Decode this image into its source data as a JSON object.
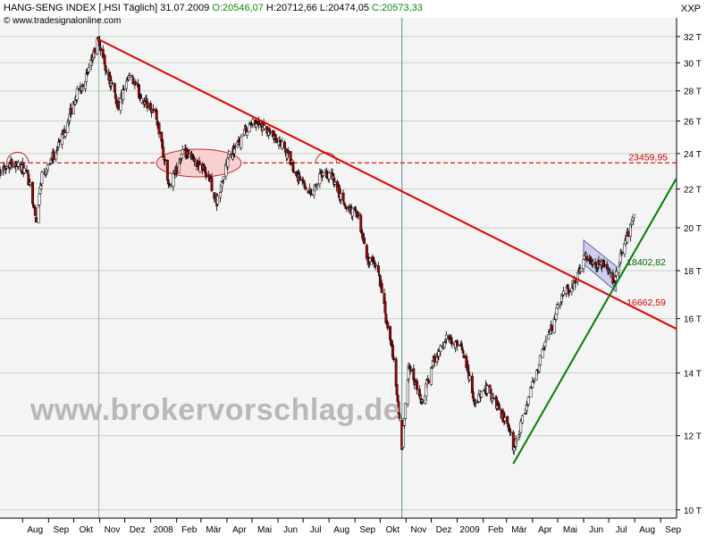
{
  "header": {
    "title": "HANG-SENG INDEX [.HSI  Täglich] 31.07.2009",
    "open_label": "O:",
    "open": "20546,07",
    "high_label": "H:",
    "high": "20712,66",
    "low_label": "L:",
    "low": "20474,05",
    "close_label": "C:",
    "close": "20573,33",
    "source": "© www.tradesignalonline.com",
    "symbol": "XXP"
  },
  "watermark": "www.brokervorschlag.de",
  "colors": {
    "background": "#f4f4f4",
    "grid": "#c6d3c6",
    "up_candle": "#ffffff",
    "down_candle": "#a80000",
    "trendline_down": "#e00000",
    "trendline_up": "#008000",
    "support_dashed": "#e00000",
    "highlight_ellipse": "#f8d0d0",
    "flag_box": "#b0b0e8",
    "label_green": "#006400",
    "label_red": "#d00000"
  },
  "chart_data": {
    "type": "candlestick",
    "title": "HANG-SENG INDEX",
    "y_scale": "log",
    "ylim": [
      9800,
      33500
    ],
    "y_ticks": [
      {
        "v": 32000,
        "label": "32 T"
      },
      {
        "v": 30000,
        "label": "30 T"
      },
      {
        "v": 28000,
        "label": "28 T"
      },
      {
        "v": 26000,
        "label": "26 T"
      },
      {
        "v": 24000,
        "label": "24 T"
      },
      {
        "v": 22000,
        "label": "22 T"
      },
      {
        "v": 20000,
        "label": "20 T"
      },
      {
        "v": 18000,
        "label": "18 T"
      },
      {
        "v": 16000,
        "label": "16 T"
      },
      {
        "v": 14000,
        "label": "14 T"
      },
      {
        "v": 12000,
        "label": "12 T"
      },
      {
        "v": 10000,
        "label": "10 T"
      }
    ],
    "xlim": [
      "2007-07-05",
      "2009-09-20"
    ],
    "x_ticks": [
      {
        "d": "2007-08-01",
        "label": "Aug"
      },
      {
        "d": "2007-09-01",
        "label": "Sep"
      },
      {
        "d": "2007-10-01",
        "label": "Okt"
      },
      {
        "d": "2007-11-01",
        "label": "Nov"
      },
      {
        "d": "2007-12-01",
        "label": "Dez"
      },
      {
        "d": "2008-01-01",
        "label": "2008"
      },
      {
        "d": "2008-02-01",
        "label": "Feb"
      },
      {
        "d": "2008-03-01",
        "label": "Mär"
      },
      {
        "d": "2008-04-01",
        "label": "Apr"
      },
      {
        "d": "2008-05-01",
        "label": "Mai"
      },
      {
        "d": "2008-06-01",
        "label": "Jun"
      },
      {
        "d": "2008-07-01",
        "label": "Jul"
      },
      {
        "d": "2008-08-01",
        "label": "Aug"
      },
      {
        "d": "2008-09-01",
        "label": "Sep"
      },
      {
        "d": "2008-10-01",
        "label": "Okt"
      },
      {
        "d": "2008-11-01",
        "label": "Nov"
      },
      {
        "d": "2008-12-01",
        "label": "Dez"
      },
      {
        "d": "2009-01-01",
        "label": "2009"
      },
      {
        "d": "2009-02-01",
        "label": "Feb"
      },
      {
        "d": "2009-03-01",
        "label": "Mär"
      },
      {
        "d": "2009-04-01",
        "label": "Apr"
      },
      {
        "d": "2009-05-01",
        "label": "Mai"
      },
      {
        "d": "2009-06-01",
        "label": "Jun"
      },
      {
        "d": "2009-07-01",
        "label": "Jul"
      },
      {
        "d": "2009-08-01",
        "label": "Aug"
      },
      {
        "d": "2009-09-01",
        "label": "Sep"
      }
    ],
    "vertical_markers": [
      {
        "d": "2007-10-31",
        "color": "#9ab59a"
      },
      {
        "d": "2008-10-27",
        "color": "#5f8f8f"
      }
    ],
    "price_path": [
      [
        "2007-07-05",
        23100
      ],
      [
        "2007-07-20",
        23500
      ],
      [
        "2007-08-01",
        23200
      ],
      [
        "2007-08-10",
        22300
      ],
      [
        "2007-08-17",
        20300
      ],
      [
        "2007-08-24",
        22800
      ],
      [
        "2007-09-07",
        23900
      ],
      [
        "2007-09-21",
        25500
      ],
      [
        "2007-10-05",
        27800
      ],
      [
        "2007-10-19",
        29300
      ],
      [
        "2007-10-30",
        31800
      ],
      [
        "2007-11-09",
        29500
      ],
      [
        "2007-11-23",
        27000
      ],
      [
        "2007-12-07",
        29000
      ],
      [
        "2007-12-20",
        27600
      ],
      [
        "2008-01-07",
        26500
      ],
      [
        "2008-01-23",
        22000
      ],
      [
        "2008-02-08",
        24000
      ],
      [
        "2008-02-22",
        23600
      ],
      [
        "2008-03-10",
        22800
      ],
      [
        "2008-03-20",
        21200
      ],
      [
        "2008-04-03",
        23800
      ],
      [
        "2008-04-15",
        24500
      ],
      [
        "2008-04-25",
        25600
      ],
      [
        "2008-05-06",
        26000
      ],
      [
        "2008-05-20",
        25200
      ],
      [
        "2008-06-06",
        24500
      ],
      [
        "2008-06-25",
        22700
      ],
      [
        "2008-07-10",
        21800
      ],
      [
        "2008-07-25",
        22900
      ],
      [
        "2008-08-05",
        22600
      ],
      [
        "2008-08-19",
        21100
      ],
      [
        "2008-09-03",
        20700
      ],
      [
        "2008-09-16",
        18500
      ],
      [
        "2008-09-29",
        18000
      ],
      [
        "2008-10-10",
        15500
      ],
      [
        "2008-10-17",
        14500
      ],
      [
        "2008-10-27",
        11500
      ],
      [
        "2008-11-04",
        14200
      ],
      [
        "2008-11-20",
        13000
      ],
      [
        "2008-12-05",
        14500
      ],
      [
        "2008-12-19",
        15200
      ],
      [
        "2009-01-08",
        14800
      ],
      [
        "2009-01-22",
        13000
      ],
      [
        "2009-02-06",
        13500
      ],
      [
        "2009-02-20",
        12800
      ],
      [
        "2009-03-06",
        12000
      ],
      [
        "2009-03-10",
        11600
      ],
      [
        "2009-03-24",
        12800
      ],
      [
        "2009-04-08",
        14300
      ],
      [
        "2009-04-24",
        15700
      ],
      [
        "2009-05-08",
        17000
      ],
      [
        "2009-05-22",
        17500
      ],
      [
        "2009-06-03",
        18600
      ],
      [
        "2009-06-15",
        18100
      ],
      [
        "2009-06-25",
        18300
      ],
      [
        "2009-07-08",
        17500
      ],
      [
        "2009-07-17",
        19000
      ],
      [
        "2009-07-24",
        19800
      ],
      [
        "2009-07-31",
        20573
      ]
    ],
    "trendline_down": {
      "from": [
        "2007-10-30",
        31800
      ],
      "to": [
        "2009-09-20",
        15600
      ]
    },
    "trendline_up": {
      "from": [
        "2009-03-09",
        11200
      ],
      "to": [
        "2009-09-20",
        22600
      ]
    },
    "support_line": {
      "value": 23459.95,
      "label": "23459,95"
    },
    "annotations": [
      {
        "text": "18402,82",
        "d": "2009-08-01",
        "v": 18402.82,
        "color": "#006400"
      },
      {
        "text": "16662,59",
        "d": "2009-08-01",
        "v": 16662.59,
        "color": "#d00000"
      }
    ],
    "ellipse": {
      "from": "2008-01-08",
      "to": "2008-04-18",
      "v": 23450,
      "v_half_span": 800
    },
    "arcs": [
      {
        "from": "2007-07-13",
        "to": "2007-08-08",
        "v": 23450
      },
      {
        "from": "2008-07-16",
        "to": "2008-08-10",
        "v": 23450
      }
    ],
    "flag_channel": {
      "top_left": [
        "2009-06-01",
        19400
      ],
      "top_right": [
        "2009-07-10",
        18200
      ],
      "bottom_right": [
        "2009-07-10",
        17100
      ],
      "bottom_left": [
        "2009-06-01",
        18300
      ]
    }
  }
}
